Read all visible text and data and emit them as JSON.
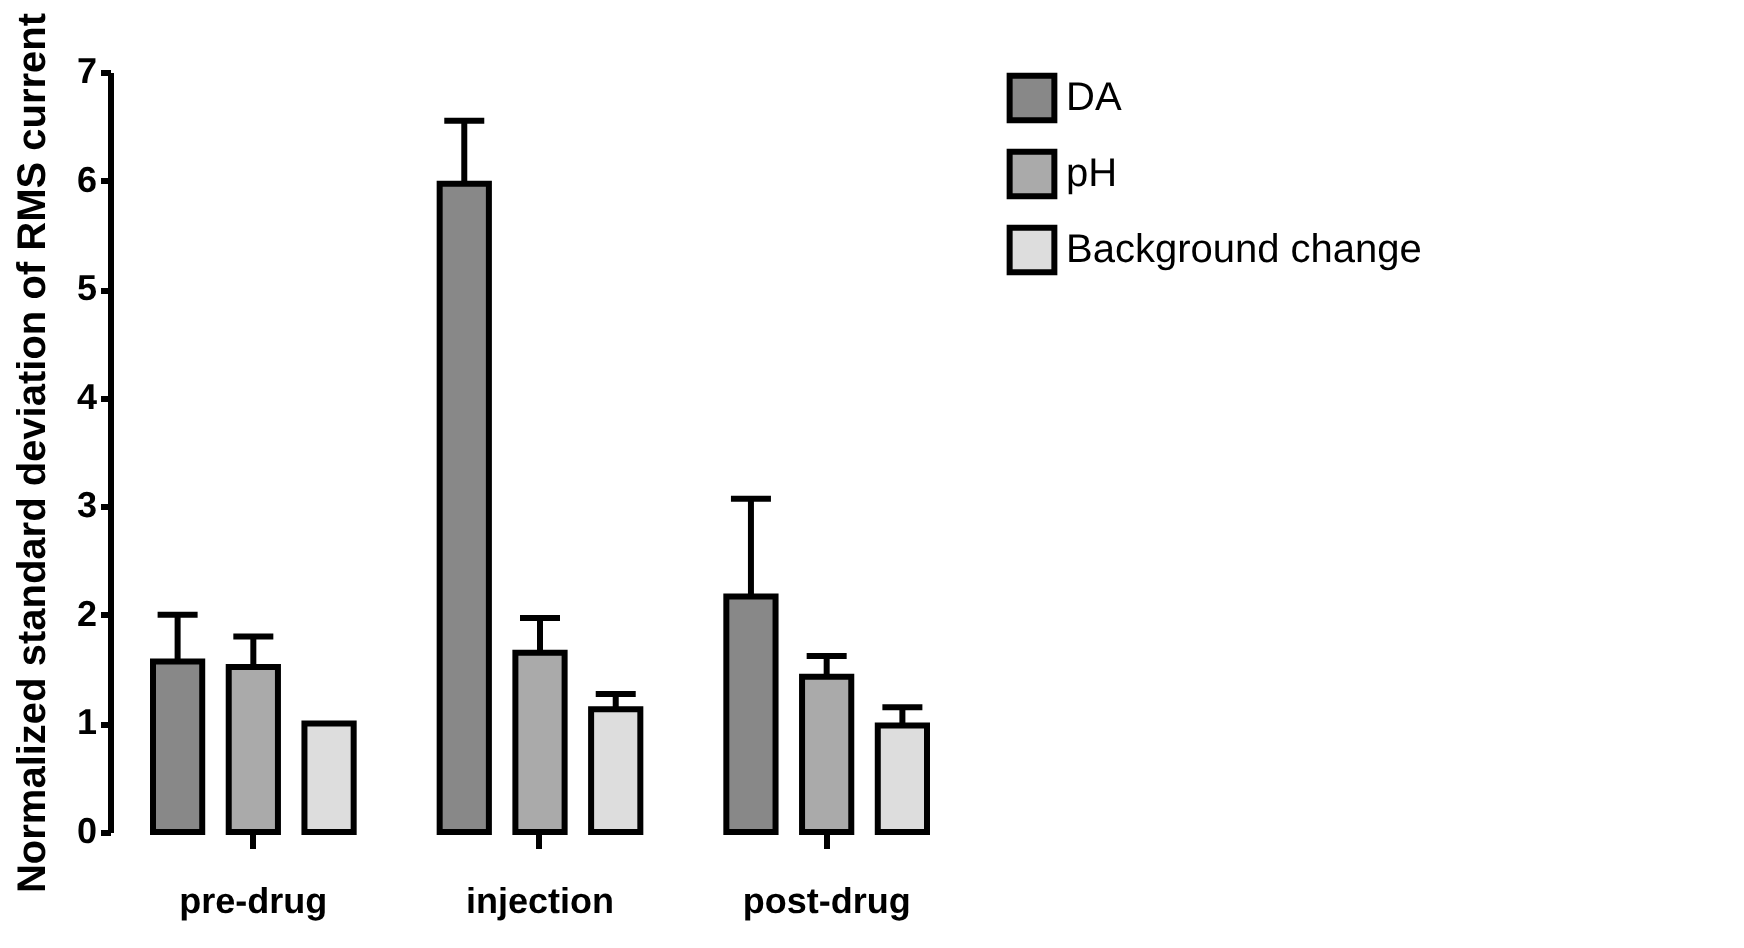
{
  "chart_data": {
    "type": "bar",
    "ylabel": "Normalized standard deviation of RMS current",
    "categories": [
      "pre-drug",
      "injection",
      "post-drug"
    ],
    "series": [
      {
        "name": "DA",
        "color": "#888888",
        "values": [
          1.57,
          5.97,
          2.17
        ],
        "errors": [
          [
            1.57,
            2.0
          ],
          [
            5.97,
            6.55
          ],
          [
            2.17,
            3.07
          ]
        ]
      },
      {
        "name": "pH",
        "color": "#aaaaaa",
        "values": [
          1.52,
          1.65,
          1.43
        ],
        "errors": [
          [
            1.52,
            1.8
          ],
          [
            1.65,
            1.97
          ],
          [
            1.43,
            1.62
          ]
        ]
      },
      {
        "name": "Background change",
        "color": "#dddddd",
        "values": [
          1.0,
          1.13,
          0.98
        ],
        "errors": [
          null,
          [
            1.13,
            1.27
          ],
          [
            0.98,
            1.15
          ]
        ]
      }
    ],
    "ylim": [
      0,
      7
    ],
    "yticks": [
      0,
      1,
      2,
      3,
      4,
      5,
      6,
      7
    ],
    "legend": "right"
  }
}
